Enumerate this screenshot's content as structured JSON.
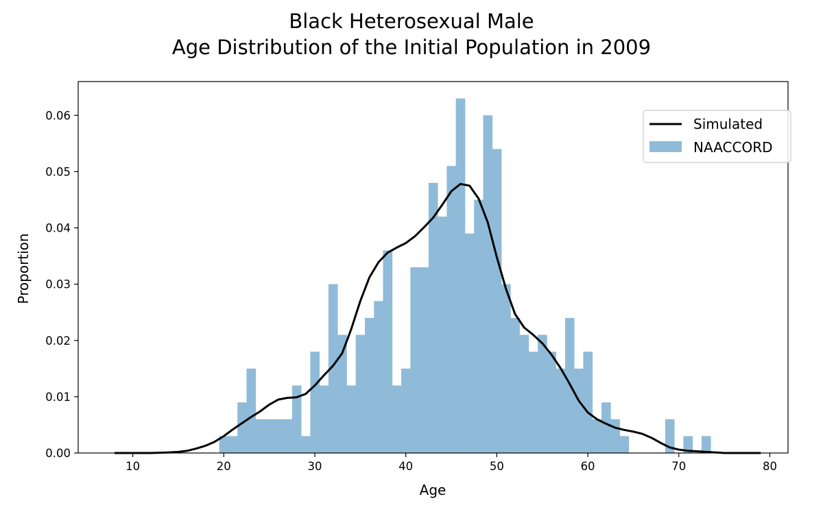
{
  "chart_data": {
    "type": "bar",
    "title_line1": "Black Heterosexual Male",
    "title_line2": "Age Distribution of the Initial Population in 2009",
    "xlabel": "Age",
    "ylabel": "Proportion",
    "xlim": [
      4,
      82
    ],
    "ylim": [
      0,
      0.066
    ],
    "xticks": [
      "10",
      "20",
      "30",
      "40",
      "50",
      "60",
      "70",
      "80"
    ],
    "yticks": [
      "0.00",
      "0.01",
      "0.02",
      "0.03",
      "0.04",
      "0.05",
      "0.06"
    ],
    "grid": false,
    "legend_position": "top-right",
    "histogram": {
      "name": "NAACCORD",
      "color": "#8fbbd9",
      "bin_width": 1,
      "bins": [
        [
          19.5,
          0.003
        ],
        [
          20.5,
          0.003
        ],
        [
          21.5,
          0.009
        ],
        [
          22.5,
          0.015
        ],
        [
          23.5,
          0.006
        ],
        [
          24.5,
          0.006
        ],
        [
          25.5,
          0.006
        ],
        [
          26.5,
          0.006
        ],
        [
          27.5,
          0.012
        ],
        [
          28.5,
          0.003
        ],
        [
          29.5,
          0.018
        ],
        [
          30.5,
          0.012
        ],
        [
          31.5,
          0.03
        ],
        [
          32.5,
          0.021
        ],
        [
          33.5,
          0.012
        ],
        [
          34.5,
          0.021
        ],
        [
          35.5,
          0.024
        ],
        [
          36.5,
          0.027
        ],
        [
          37.5,
          0.036
        ],
        [
          38.5,
          0.012
        ],
        [
          39.5,
          0.015
        ],
        [
          40.5,
          0.033
        ],
        [
          41.5,
          0.033
        ],
        [
          42.5,
          0.048
        ],
        [
          43.5,
          0.042
        ],
        [
          44.5,
          0.051
        ],
        [
          45.5,
          0.063
        ],
        [
          46.5,
          0.039
        ],
        [
          47.5,
          0.045
        ],
        [
          48.5,
          0.06
        ],
        [
          49.5,
          0.054
        ],
        [
          50.5,
          0.03
        ],
        [
          51.5,
          0.024
        ],
        [
          52.5,
          0.021
        ],
        [
          53.5,
          0.018
        ],
        [
          54.5,
          0.021
        ],
        [
          55.5,
          0.018
        ],
        [
          56.5,
          0.015
        ],
        [
          57.5,
          0.024
        ],
        [
          58.5,
          0.015
        ],
        [
          59.5,
          0.018
        ],
        [
          60.5,
          0.006
        ],
        [
          61.5,
          0.009
        ],
        [
          62.5,
          0.006
        ],
        [
          63.5,
          0.003
        ],
        [
          68.5,
          0.006
        ],
        [
          70.5,
          0.003
        ],
        [
          72.5,
          0.003
        ]
      ]
    },
    "line": {
      "name": "Simulated",
      "color": "#000000",
      "x": [
        8,
        10,
        12,
        14,
        15,
        16,
        17,
        18,
        19,
        20,
        21,
        22,
        23,
        24,
        25,
        26,
        27,
        28,
        29,
        30,
        31,
        32,
        33,
        34,
        35,
        36,
        37,
        38,
        39,
        40,
        41,
        42,
        43,
        44,
        45,
        46,
        47,
        48,
        49,
        50,
        51,
        52,
        53,
        54,
        55,
        56,
        57,
        58,
        59,
        60,
        61,
        62,
        63,
        64,
        65,
        66,
        67,
        68,
        69,
        70,
        71,
        72,
        73,
        74,
        75,
        76,
        77,
        78,
        79
      ],
      "y": [
        0.0,
        0.0,
        0.0,
        0.0001,
        0.0002,
        0.0004,
        0.0008,
        0.0013,
        0.002,
        0.003,
        0.0042,
        0.0053,
        0.0064,
        0.0074,
        0.0086,
        0.0095,
        0.0098,
        0.0099,
        0.0105,
        0.012,
        0.0138,
        0.0155,
        0.0177,
        0.022,
        0.027,
        0.0312,
        0.0339,
        0.0356,
        0.0365,
        0.0373,
        0.0385,
        0.0401,
        0.0418,
        0.0441,
        0.0465,
        0.0478,
        0.0475,
        0.0452,
        0.041,
        0.0348,
        0.0292,
        0.0247,
        0.0223,
        0.021,
        0.0195,
        0.0175,
        0.0151,
        0.0123,
        0.0093,
        0.0072,
        0.006,
        0.0052,
        0.0045,
        0.0041,
        0.0038,
        0.0034,
        0.0027,
        0.0018,
        0.001,
        0.0006,
        0.0004,
        0.0003,
        0.0002,
        0.0001,
        0.0,
        0.0,
        0.0,
        0.0,
        0.0
      ]
    }
  }
}
